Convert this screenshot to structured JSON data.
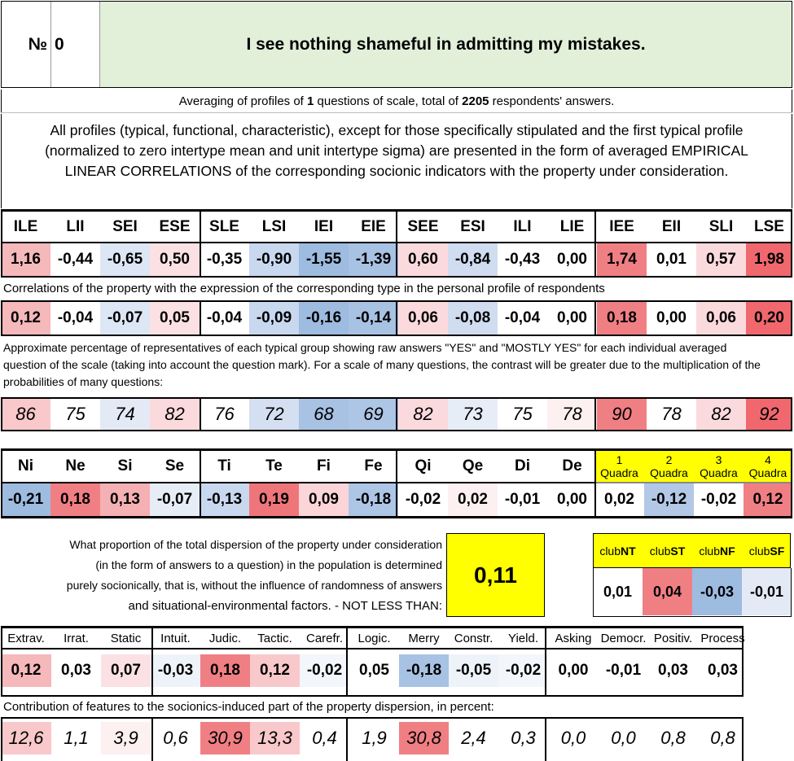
{
  "header": {
    "number_label": "№",
    "number_value": "0",
    "question": "I see nothing shameful in admitting my mistakes."
  },
  "averaging": {
    "prefix": "Averaging of profiles of ",
    "count": "1",
    "middle": " questions of scale, total of ",
    "total": "2205",
    "suffix": " respondents' answers."
  },
  "description": "All profiles (typical, functional, characteristic), except for those specifically stipulated and the first typical profile (normalized to zero intertype mean and unit intertype sigma) are presented in the form of averaged EMPIRICAL LINEAR CORRELATIONS of the corresponding socionic indicators with the property under consideration.",
  "types": {
    "headers": [
      "ILE",
      "LII",
      "SEI",
      "ESE",
      "SLE",
      "LSI",
      "IEI",
      "EIE",
      "SEE",
      "ESI",
      "ILI",
      "LIE",
      "IEE",
      "EII",
      "SLI",
      "LSE"
    ],
    "profile": [
      "1,16",
      "-0,44",
      "-0,65",
      "0,50",
      "-0,35",
      "-0,90",
      "-1,55",
      "-1,39",
      "0,60",
      "-0,84",
      "-0,43",
      "0,00",
      "1,74",
      "0,01",
      "0,57",
      "1,98"
    ],
    "profile_colors": [
      "#f5b8bb",
      "#ffffff",
      "#dde6f4",
      "#fbe1e3",
      "#ffffff",
      "#c8d8ef",
      "#9ebbe0",
      "#a8c2e3",
      "#fbdadd",
      "#d0dcf0",
      "#ffffff",
      "#ffffff",
      "#f07f84",
      "#ffffff",
      "#fbdadd",
      "#f0686e"
    ],
    "correlation_label": "Correlations of the property with the expression of the corresponding type in the personal profile of respondents",
    "correlations": [
      "0,12",
      "-0,04",
      "-0,07",
      "0,05",
      "-0,04",
      "-0,09",
      "-0,16",
      "-0,14",
      "0,06",
      "-0,08",
      "-0,04",
      "0,00",
      "0,18",
      "0,00",
      "0,06",
      "0,20"
    ],
    "correlation_colors": [
      "#f5b8bb",
      "#ffffff",
      "#dde6f4",
      "#fbe1e3",
      "#ffffff",
      "#c8d8ef",
      "#9ebbe0",
      "#a8c2e3",
      "#fbdadd",
      "#d0dcf0",
      "#ffffff",
      "#ffffff",
      "#f07f84",
      "#ffffff",
      "#fbdadd",
      "#f0686e"
    ],
    "percentage_label": "Approximate percentage of representatives of each typical group showing raw answers \"YES\" and \"MOSTLY YES\" for each individual averaged question of the scale (taking into account the question mark). For a scale of many questions, the contrast will be greater due to the multiplication of the probabilities of many questions:",
    "percentages": [
      "86",
      "75",
      "74",
      "82",
      "76",
      "72",
      "68",
      "69",
      "82",
      "73",
      "75",
      "78",
      "90",
      "78",
      "82",
      "92"
    ],
    "percentage_colors": [
      "#f8c8cb",
      "#ffffff",
      "#e3eaf6",
      "#fbdadd",
      "#ffffff",
      "#d4dff1",
      "#a8c2e3",
      "#aec6e5",
      "#fbdadd",
      "#e6edf7",
      "#ffffff",
      "#fdf0f1",
      "#f07f84",
      "#ffffff",
      "#fbdadd",
      "#f0686e"
    ]
  },
  "functions": {
    "headers": [
      "Ni",
      "Ne",
      "Si",
      "Se",
      "Ti",
      "Te",
      "Fi",
      "Fe",
      "Qi",
      "Qe",
      "Di",
      "De"
    ],
    "values": [
      "-0,21",
      "0,18",
      "0,13",
      "-0,07",
      "-0,13",
      "0,19",
      "0,09",
      "-0,18",
      "-0,02",
      "0,02",
      "-0,01",
      "0,00"
    ],
    "colors": [
      "#9ebbe0",
      "#f07f84",
      "#f5b0b4",
      "#e6edf7",
      "#c8d8ef",
      "#ee767b",
      "#fbd5d8",
      "#aec6e5",
      "#ffffff",
      "#fdf0f1",
      "#ffffff",
      "#ffffff"
    ],
    "quadras": [
      {
        "num": "1",
        "label": "Quadra",
        "value": "0,02",
        "color": "#ffffff"
      },
      {
        "num": "2",
        "label": "Quadra",
        "value": "-0,12",
        "color": "#b3c8e6"
      },
      {
        "num": "3",
        "label": "Quadra",
        "value": "-0,02",
        "color": "#ffffff"
      },
      {
        "num": "4",
        "label": "Quadra",
        "value": "0,12",
        "color": "#f07f84"
      }
    ]
  },
  "dispersion": {
    "lines": [
      "What proportion of the total dispersion of the property under consideration",
      "(in the form of answers to a question) in the population is determined",
      "purely socionically, that is, without the influence of randomness of answers",
      "and situational-environmental factors. - NOT LESS THAN:"
    ],
    "value": "0,11",
    "highlight_color": "#ffff00"
  },
  "clubs": [
    {
      "prefix": "club",
      "suffix": "NT",
      "value": "0,01",
      "color": "#ffffff"
    },
    {
      "prefix": "club",
      "suffix": "ST",
      "value": "0,04",
      "color": "#f07f84"
    },
    {
      "prefix": "club",
      "suffix": "NF",
      "value": "-0,03",
      "color": "#9ebbe0"
    },
    {
      "prefix": "club",
      "suffix": "SF",
      "value": "-0,01",
      "color": "#e3eaf6"
    }
  ],
  "features": {
    "headers": [
      "Extrav.",
      "Irrat.",
      "Static",
      "Intuit.",
      "Judic.",
      "Tactic.",
      "Carefr.",
      "Logic.",
      "Merry",
      "Constr.",
      "Yield.",
      "Asking",
      "Democr.",
      "Positiv.",
      "Process"
    ],
    "values": [
      "0,12",
      "0,03",
      "0,07",
      "-0,03",
      "0,18",
      "0,12",
      "-0,02",
      "0,05",
      "-0,18",
      "-0,05",
      "-0,02",
      "0,00",
      "-0,01",
      "0,03",
      "0,03"
    ],
    "colors": [
      "#f5b8bb",
      "#ffffff",
      "#fbe1e3",
      "#eef3f9",
      "#f07f84",
      "#f8c8cb",
      "#f3f6fb",
      "#ffffff",
      "#a8c2e3",
      "#eef3f9",
      "#f3f6fb",
      "#ffffff",
      "#ffffff",
      "#ffffff",
      "#ffffff"
    ],
    "contribution_label": "Contribution of features to the sociоnics-induced part of the property dispersion, in percent:",
    "contributions": [
      "12,6",
      "1,1",
      "3,9",
      "0,6",
      "30,9",
      "13,3",
      "0,4",
      "1,9",
      "30,8",
      "2,4",
      "0,3",
      "0,0",
      "0,0",
      "0,8",
      "0,8"
    ],
    "contribution_colors": [
      "#f8c8cb",
      "#ffffff",
      "#fdf0f1",
      "#ffffff",
      "#f07f84",
      "#f8c8cb",
      "#ffffff",
      "#ffffff",
      "#f07f84",
      "#ffffff",
      "#ffffff",
      "#ffffff",
      "#ffffff",
      "#ffffff",
      "#ffffff"
    ]
  },
  "colors": {
    "title_bg": "#e2efd9",
    "yellow": "#ffff00",
    "border": "#000000"
  }
}
